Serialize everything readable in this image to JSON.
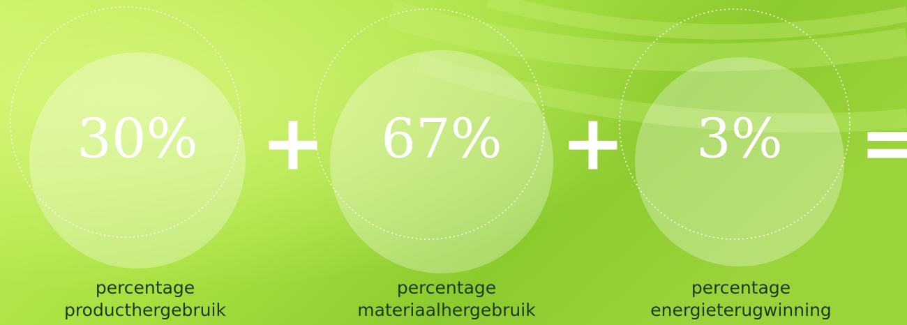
{
  "items": [
    {
      "value": "30%",
      "caption": [
        "percentage",
        "producthergebruik"
      ]
    },
    {
      "value": "67%",
      "caption": [
        "percentage",
        "materiaalhergebruik"
      ]
    },
    {
      "value": "3%",
      "caption": [
        "percentage",
        "energieterugwinning"
      ]
    }
  ],
  "operators": [
    "+",
    "+",
    "="
  ]
}
